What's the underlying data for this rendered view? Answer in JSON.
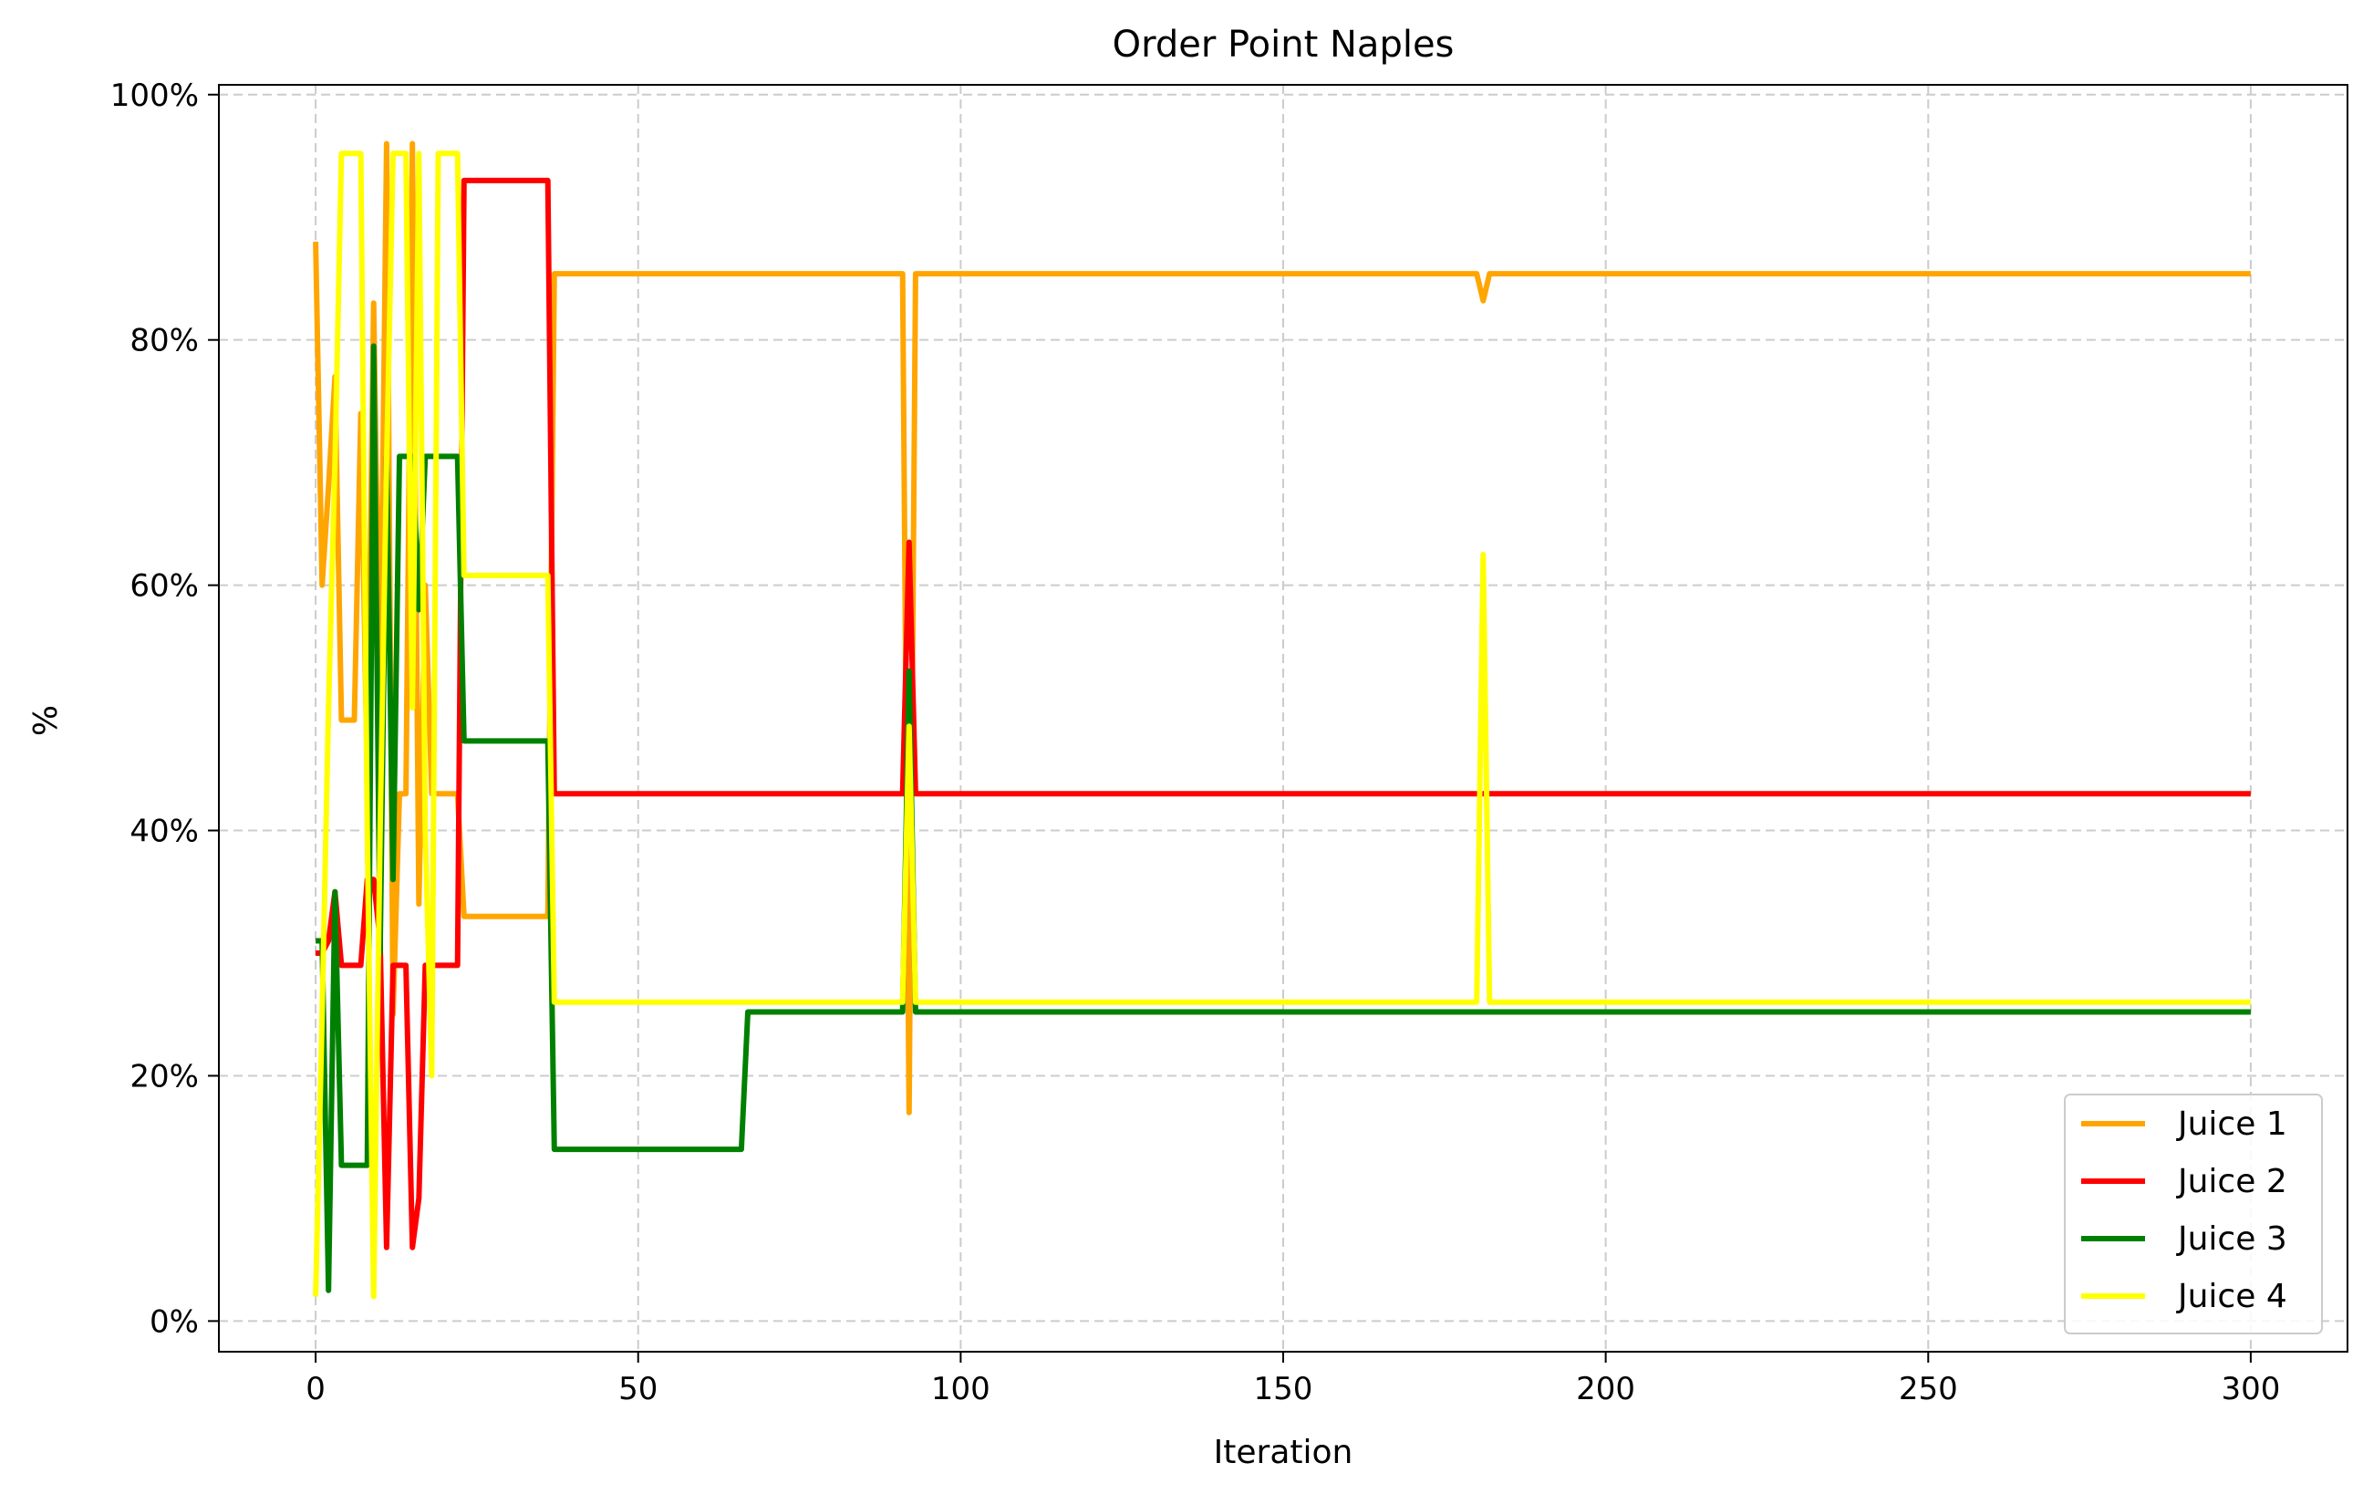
{
  "chart_data": {
    "type": "line",
    "title": "Order Point Naples",
    "xlabel": "Iteration",
    "ylabel": "%",
    "xlim": [
      -15,
      315
    ],
    "ylim": [
      -2.5,
      100.8
    ],
    "x_ticks": [
      0,
      50,
      100,
      150,
      200,
      250,
      300
    ],
    "y_ticks": [
      0,
      20,
      40,
      60,
      80,
      100
    ],
    "y_tick_labels": [
      "0%",
      "20%",
      "40%",
      "60%",
      "80%",
      "100%"
    ],
    "grid": true,
    "legend_position": "lower right",
    "series": [
      {
        "name": "Juice 1",
        "color": "#FFA500",
        "points": [
          [
            0,
            88
          ],
          [
            1,
            60
          ],
          [
            2,
            68
          ],
          [
            3,
            77
          ],
          [
            4,
            49
          ],
          [
            5,
            49
          ],
          [
            6,
            49
          ],
          [
            7,
            74
          ],
          [
            8,
            44
          ],
          [
            9,
            83
          ],
          [
            10,
            50
          ],
          [
            11,
            96
          ],
          [
            12,
            25
          ],
          [
            13,
            43
          ],
          [
            14,
            43
          ],
          [
            15,
            96
          ],
          [
            16,
            34
          ],
          [
            17,
            60
          ],
          [
            18,
            43
          ],
          [
            19,
            43
          ],
          [
            20,
            43
          ],
          [
            21,
            43
          ],
          [
            22,
            43
          ],
          [
            23,
            33
          ],
          [
            24,
            33
          ],
          [
            30,
            33
          ],
          [
            36,
            33
          ],
          [
            37,
            85.4
          ],
          [
            50,
            85.4
          ],
          [
            91,
            85.4
          ],
          [
            92,
            17
          ],
          [
            93,
            85.4
          ],
          [
            180,
            85.4
          ],
          [
            181,
            83.2
          ],
          [
            182,
            85.4
          ],
          [
            300,
            85.4
          ]
        ]
      },
      {
        "name": "Juice 2",
        "color": "#FF0000",
        "points": [
          [
            0,
            30
          ],
          [
            1,
            30
          ],
          [
            2,
            31
          ],
          [
            3,
            35
          ],
          [
            4,
            29
          ],
          [
            5,
            29
          ],
          [
            6,
            29
          ],
          [
            7,
            29
          ],
          [
            8,
            36
          ],
          [
            9,
            36
          ],
          [
            10,
            31
          ],
          [
            11,
            6
          ],
          [
            12,
            29
          ],
          [
            13,
            29
          ],
          [
            14,
            29
          ],
          [
            15,
            6
          ],
          [
            16,
            10
          ],
          [
            17,
            29
          ],
          [
            18,
            29
          ],
          [
            19,
            29
          ],
          [
            20,
            29
          ],
          [
            21,
            29
          ],
          [
            22,
            29
          ],
          [
            23,
            93
          ],
          [
            24,
            93
          ],
          [
            30,
            93
          ],
          [
            36,
            93
          ],
          [
            37,
            43
          ],
          [
            50,
            43
          ],
          [
            91,
            43
          ],
          [
            92,
            63.5
          ],
          [
            93,
            43
          ],
          [
            180,
            43
          ],
          [
            181,
            43
          ],
          [
            182,
            43
          ],
          [
            300,
            43
          ]
        ]
      },
      {
        "name": "Juice 3",
        "color": "#008000",
        "points": [
          [
            0,
            31
          ],
          [
            1,
            31
          ],
          [
            2,
            2.5
          ],
          [
            3,
            35
          ],
          [
            4,
            12.7
          ],
          [
            5,
            12.7
          ],
          [
            6,
            12.7
          ],
          [
            7,
            12.7
          ],
          [
            8,
            12.7
          ],
          [
            9,
            79.5
          ],
          [
            10,
            30
          ],
          [
            11,
            70.5
          ],
          [
            12,
            36
          ],
          [
            13,
            70.5
          ],
          [
            14,
            70.5
          ],
          [
            15,
            70.5
          ],
          [
            16,
            58
          ],
          [
            17,
            70.5
          ],
          [
            18,
            70.5
          ],
          [
            19,
            70.5
          ],
          [
            20,
            70.5
          ],
          [
            21,
            70.5
          ],
          [
            22,
            70.5
          ],
          [
            23,
            47.3
          ],
          [
            24,
            47.3
          ],
          [
            30,
            47.3
          ],
          [
            36,
            47.3
          ],
          [
            37,
            14
          ],
          [
            50,
            14
          ],
          [
            66,
            14
          ],
          [
            67,
            25.2
          ],
          [
            91,
            25.2
          ],
          [
            92,
            53
          ],
          [
            93,
            25.2
          ],
          [
            180,
            25.2
          ],
          [
            181,
            25.2
          ],
          [
            182,
            25.2
          ],
          [
            300,
            25.2
          ]
        ]
      },
      {
        "name": "Juice 4",
        "color": "#FFFF00",
        "points": [
          [
            0,
            2
          ],
          [
            1,
            25
          ],
          [
            2,
            50
          ],
          [
            3,
            70
          ],
          [
            4,
            95.2
          ],
          [
            5,
            95.2
          ],
          [
            6,
            95.2
          ],
          [
            7,
            95.2
          ],
          [
            8,
            40
          ],
          [
            9,
            2
          ],
          [
            10,
            40
          ],
          [
            11,
            70
          ],
          [
            12,
            95.2
          ],
          [
            13,
            95.2
          ],
          [
            14,
            95.2
          ],
          [
            15,
            50
          ],
          [
            16,
            95.2
          ],
          [
            17,
            40
          ],
          [
            18,
            20
          ],
          [
            19,
            95.2
          ],
          [
            20,
            95.2
          ],
          [
            21,
            95.2
          ],
          [
            22,
            95.2
          ],
          [
            23,
            60.8
          ],
          [
            24,
            60.8
          ],
          [
            30,
            60.8
          ],
          [
            36,
            60.8
          ],
          [
            37,
            26
          ],
          [
            50,
            26
          ],
          [
            91,
            26
          ],
          [
            92,
            48.5
          ],
          [
            93,
            26
          ],
          [
            180,
            26
          ],
          [
            181,
            62.5
          ],
          [
            182,
            26
          ],
          [
            300,
            26
          ]
        ]
      }
    ]
  }
}
